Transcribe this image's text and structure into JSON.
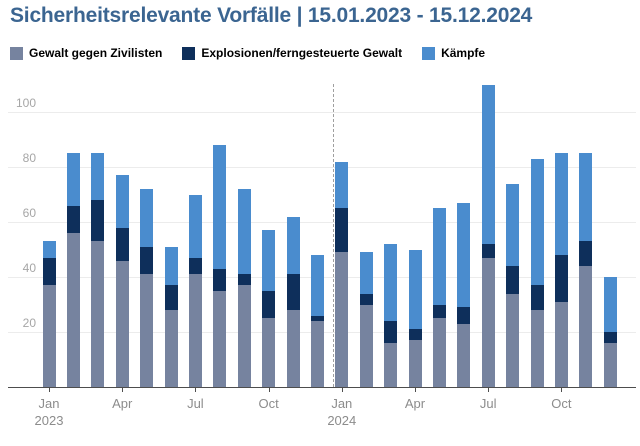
{
  "chart_data": {
    "type": "bar",
    "stacked": true,
    "title": "Sicherheitsrelevante Vorfälle | 15.01.2023 - 15.12.2024",
    "categories": [
      "Jan 2023",
      "Feb 2023",
      "Mar 2023",
      "Apr 2023",
      "May 2023",
      "Jun 2023",
      "Jul 2023",
      "Aug 2023",
      "Sep 2023",
      "Oct 2023",
      "Nov 2023",
      "Dec 2023",
      "Jan 2024",
      "Feb 2024",
      "Mar 2024",
      "Apr 2024",
      "May 2024",
      "Jun 2024",
      "Jul 2024",
      "Aug 2024",
      "Sep 2024",
      "Oct 2024",
      "Nov 2024",
      "Dec 2024"
    ],
    "series": [
      {
        "name": "Gewalt gegen Zivilisten",
        "color": "#76839f",
        "values": [
          37,
          56,
          53,
          46,
          41,
          28,
          41,
          35,
          37,
          25,
          28,
          24,
          49,
          30,
          16,
          17,
          25,
          23,
          47,
          34,
          28,
          31,
          44,
          16
        ]
      },
      {
        "name": "Explosionen/ferngesteuerte Gewalt",
        "color": "#0e2f5b",
        "values": [
          10,
          10,
          15,
          12,
          10,
          9,
          6,
          8,
          4,
          10,
          13,
          2,
          16,
          4,
          8,
          4,
          5,
          6,
          5,
          10,
          9,
          17,
          9,
          4
        ]
      },
      {
        "name": "Kämpfe",
        "color": "#4a8cce",
        "values": [
          6,
          19,
          17,
          19,
          21,
          14,
          23,
          45,
          31,
          22,
          21,
          22,
          17,
          15,
          28,
          29,
          35,
          38,
          58,
          30,
          46,
          37,
          32,
          20
        ]
      }
    ],
    "totals": [
      53,
      85,
      85,
      77,
      72,
      51,
      70,
      88,
      72,
      57,
      62,
      48,
      82,
      49,
      52,
      50,
      65,
      67,
      110,
      74,
      83,
      85,
      85,
      40
    ],
    "y_ticks": [
      20,
      40,
      60,
      80,
      100
    ],
    "x_ticks": [
      {
        "label": "Jan",
        "year": "2023",
        "index": 0
      },
      {
        "label": "Apr",
        "index": 3
      },
      {
        "label": "Jul",
        "index": 6
      },
      {
        "label": "Oct",
        "index": 9
      },
      {
        "label": "Jan",
        "year": "2024",
        "index": 12
      },
      {
        "label": "Apr",
        "index": 15
      },
      {
        "label": "Jul",
        "index": 18
      },
      {
        "label": "Oct",
        "index": 21
      }
    ],
    "ylim": [
      0,
      111
    ],
    "grid": true,
    "legend_position": "top",
    "year_divider_between": [
      "Dec 2023",
      "Jan 2024"
    ]
  },
  "colors": {
    "title": "#3b6591",
    "axis_line": "#4d4d4d",
    "gridline": "#ececec",
    "tick_label": "#8c8c8c",
    "y_label": "#a6a6a6",
    "divider": "#9f9f9f",
    "background": "#ffffff"
  }
}
